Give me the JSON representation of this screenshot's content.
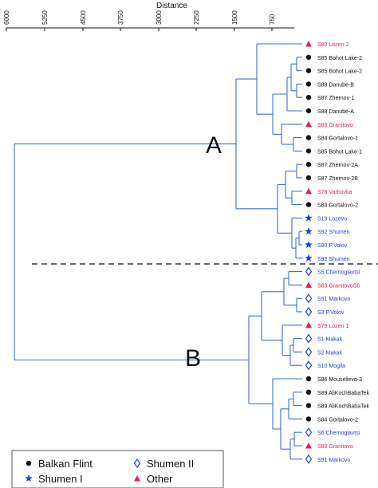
{
  "axis": {
    "title": "Distance",
    "ticks": [
      "6000",
      "5250",
      "4500",
      "3750",
      "3000",
      "2250",
      "1500",
      "750"
    ]
  },
  "clusters": [
    {
      "label": "A"
    },
    {
      "label": "B"
    }
  ],
  "leaves": [
    {
      "label": "S80 Lozen 2",
      "group": "other"
    },
    {
      "label": "S85 Bohot Lake-2",
      "group": "balkan"
    },
    {
      "label": "S85 Bohot Lake-2",
      "group": "balkan"
    },
    {
      "label": "S88 Danube-B",
      "group": "balkan"
    },
    {
      "label": "S87 Zhernov-1",
      "group": "balkan"
    },
    {
      "label": "S88 Danube-A",
      "group": "balkan"
    },
    {
      "label": "S83 Granitovo",
      "group": "other"
    },
    {
      "label": "S84 Gortalovo-1",
      "group": "balkan"
    },
    {
      "label": "S85 Bohot Lake-1",
      "group": "balkan"
    },
    {
      "label": "S87 Zhernov-2A",
      "group": "balkan"
    },
    {
      "label": "S87 Zhernov-2B",
      "group": "balkan"
    },
    {
      "label": "S78 Varbovka",
      "group": "other"
    },
    {
      "label": "S84 Gortalovo-2",
      "group": "balkan"
    },
    {
      "label": "S13 Lozevo",
      "group": "shumen1"
    },
    {
      "label": "S92 Shumen",
      "group": "shumen1"
    },
    {
      "label": "S90 P.Volov",
      "group": "shumen1"
    },
    {
      "label": "S92 Shumen",
      "group": "shumen1"
    },
    {
      "label": "S5 Chernoglavtsi",
      "group": "shumen2"
    },
    {
      "label": "S83 GranitovoS6",
      "group": "other"
    },
    {
      "label": "S91 Markovo",
      "group": "shumen2"
    },
    {
      "label": "S3 P.Volov",
      "group": "shumen2"
    },
    {
      "label": "S79 Lozen 1",
      "group": "other"
    },
    {
      "label": "S1 Makak",
      "group": "shumen2"
    },
    {
      "label": "S2 Makak",
      "group": "shumen2"
    },
    {
      "label": "S10 Mogila",
      "group": "shumen2"
    },
    {
      "label": "S86 Mouselievo-3",
      "group": "balkan"
    },
    {
      "label": "S89 AliKochBabaTek",
      "group": "balkan"
    },
    {
      "label": "S89 AliKochBabaTek",
      "group": "balkan"
    },
    {
      "label": "S84 Gortalovo-2",
      "group": "balkan"
    },
    {
      "label": "S6 Chernoglavtsi",
      "group": "shumen2"
    },
    {
      "label": "S83 Granitovo",
      "group": "other"
    },
    {
      "label": "S91 Markovo",
      "group": "shumen2"
    }
  ],
  "legend": [
    {
      "label": "Balkan Flint",
      "group": "balkan"
    },
    {
      "label": "Shumen II",
      "group": "shumen2"
    },
    {
      "label": "Shumen I",
      "group": "shumen1"
    },
    {
      "label": "Other",
      "group": "other"
    }
  ],
  "colors": {
    "branch": "#3b6fd6",
    "balkan": "#111111",
    "shumen1": "#1e3fe0",
    "shumen2": "#1e3fe0",
    "other": "#e0205a",
    "balkan_text": "#111111",
    "shumen1_text": "#1e3fe0",
    "shumen2_text": "#1e3fe0",
    "other_text": "#e0205a",
    "cut_line": "#111111"
  }
}
